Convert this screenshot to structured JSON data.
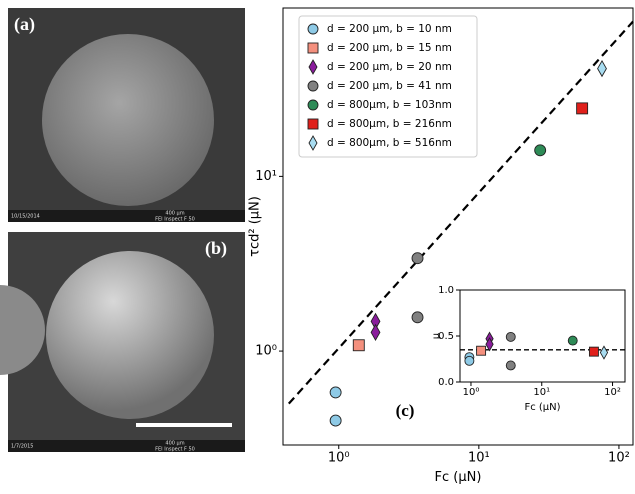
{
  "images": [
    {
      "label": "(a)",
      "footer_left": "10/15/2014",
      "scale_text": "400 μm",
      "footer_right": "FEI Inspect F 50"
    },
    {
      "label": "(b)",
      "footer_left": "1/7/2015",
      "scale_text": "400 μm",
      "footer_right": "FEI Inspect F 50"
    }
  ],
  "chart_data": [
    {
      "type": "scatter",
      "panel_label": "(c)",
      "x_label": "Fc (μN)",
      "y_label": "τcd² (μN)",
      "xscale": "log",
      "yscale": "log",
      "xlim": [
        0.4,
        126
      ],
      "ylim": [
        0.29,
        92
      ],
      "xticks": [
        {
          "value": 1,
          "label": "10⁰"
        },
        {
          "value": 10,
          "label": "10¹"
        },
        {
          "value": 100,
          "label": "10²"
        }
      ],
      "yticks": [
        {
          "value": 1,
          "label": "10⁰"
        },
        {
          "value": 10,
          "label": "10¹"
        }
      ],
      "legend": "upper left",
      "fit_line": {
        "x": [
          0.44,
          126
        ],
        "values": [
          0.5,
          77
        ]
      },
      "series": [
        {
          "name": "d = 200 μm, b = 10 nm",
          "color": "#8ecae6",
          "marker": "circle",
          "x": [
            0.95,
            0.95
          ],
          "values": [
            0.58,
            0.4
          ]
        },
        {
          "name": "d = 200 μm, b = 15 nm",
          "color": "#f4907e",
          "marker": "square",
          "x": [
            1.39
          ],
          "values": [
            1.08
          ]
        },
        {
          "name": "d = 200 μm, b = 20 nm",
          "color": "#8a1c9c",
          "marker": "diamond",
          "x": [
            1.83,
            1.83
          ],
          "values": [
            1.48,
            1.28
          ]
        },
        {
          "name": "d = 200 μm, b = 41 nm",
          "color": "#808080",
          "marker": "circle",
          "x": [
            3.65,
            3.65
          ],
          "values": [
            3.4,
            1.56
          ]
        },
        {
          "name": "d = 800μm, b = 103nm",
          "color": "#2e8b57",
          "marker": "circle",
          "x": [
            27.4
          ],
          "values": [
            14.1
          ]
        },
        {
          "name": "d = 800μm, b = 216nm",
          "color": "#e0201b",
          "marker": "square",
          "x": [
            54.6
          ],
          "values": [
            24.5
          ]
        },
        {
          "name": "d = 800μm, b = 516nm",
          "color": "#a8dcf0",
          "marker": "diamond",
          "x": [
            75.7
          ],
          "values": [
            41.4
          ]
        }
      ]
    },
    {
      "type": "scatter",
      "x_label": "Fc (μN)",
      "y_label": "μ",
      "xscale": "log",
      "yscale": "linear",
      "xlim": [
        0.7,
        150
      ],
      "ylim": [
        0,
        1
      ],
      "xticks": [
        {
          "value": 1,
          "label": "10⁰"
        },
        {
          "value": 10,
          "label": "10¹"
        },
        {
          "value": 100,
          "label": "10²"
        }
      ],
      "yticks": [
        {
          "value": 0,
          "label": "0.0"
        },
        0.5,
        {
          "value": 1,
          "label": "1.0"
        }
      ],
      "fit_line": {
        "x": [
          0.7,
          150
        ],
        "values": [
          0.35,
          0.35
        ]
      },
      "series": [
        {
          "color": "#8ecae6",
          "marker": "circle",
          "x": [
            0.95,
            0.95
          ],
          "values": [
            0.27,
            0.23
          ]
        },
        {
          "color": "#f4907e",
          "marker": "square",
          "x": [
            1.39
          ],
          "values": [
            0.34
          ]
        },
        {
          "color": "#8a1c9c",
          "marker": "diamond",
          "x": [
            1.83,
            1.83
          ],
          "values": [
            0.47,
            0.41
          ]
        },
        {
          "color": "#808080",
          "marker": "circle",
          "x": [
            3.65,
            3.65
          ],
          "values": [
            0.49,
            0.18
          ]
        },
        {
          "color": "#2e8b57",
          "marker": "circle",
          "x": [
            27.4
          ],
          "values": [
            0.45
          ]
        },
        {
          "color": "#e0201b",
          "marker": "square",
          "x": [
            54.6
          ],
          "values": [
            0.33
          ]
        },
        {
          "color": "#a8dcf0",
          "marker": "diamond",
          "x": [
            75.7
          ],
          "values": [
            0.32
          ]
        }
      ]
    }
  ]
}
